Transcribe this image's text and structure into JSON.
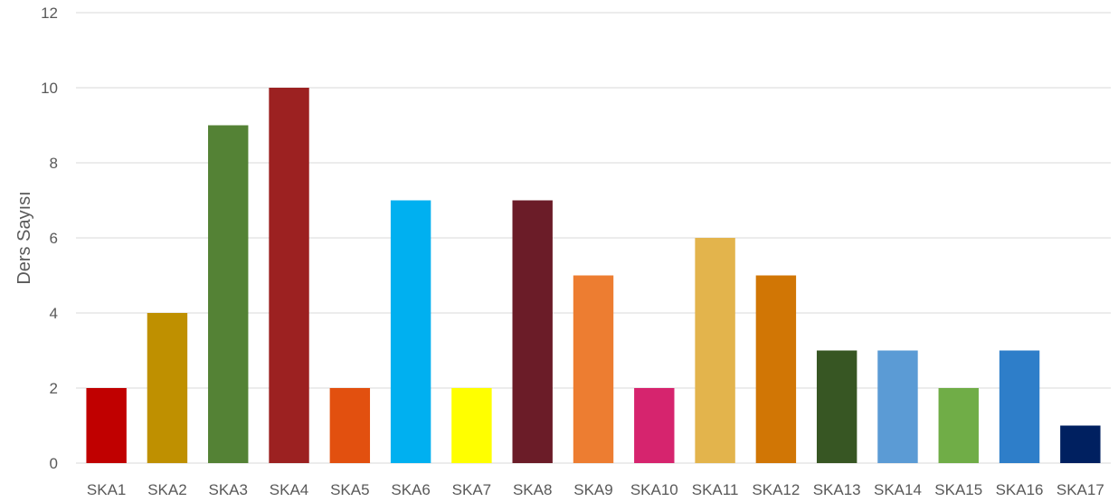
{
  "chart_data": {
    "type": "bar",
    "title": "",
    "xlabel": "",
    "ylabel": "Ders Sayısı",
    "ylim": [
      0,
      12
    ],
    "yticks": [
      0,
      2,
      4,
      6,
      8,
      10,
      12
    ],
    "grid": true,
    "legend": "none",
    "categories": [
      "SKA1",
      "SKA2",
      "SKA3",
      "SKA4",
      "SKA5",
      "SKA6",
      "SKA7",
      "SKA8",
      "SKA9",
      "SKA10",
      "SKA11",
      "SKA12",
      "SKA13",
      "SKA14",
      "SKA15",
      "SKA16",
      "SKA17"
    ],
    "values": [
      2,
      4,
      9,
      10,
      2,
      7,
      2,
      7,
      5,
      2,
      6,
      5,
      3,
      3,
      2,
      3,
      1
    ],
    "colors": [
      "#c00000",
      "#bf9000",
      "#548235",
      "#9c2121",
      "#e2500f",
      "#00b0f0",
      "#ffff00",
      "#6b1c28",
      "#ed7d31",
      "#d6246e",
      "#e3b44c",
      "#d17605",
      "#375623",
      "#5b9bd5",
      "#70ad47",
      "#2e7ec9",
      "#002060"
    ]
  }
}
